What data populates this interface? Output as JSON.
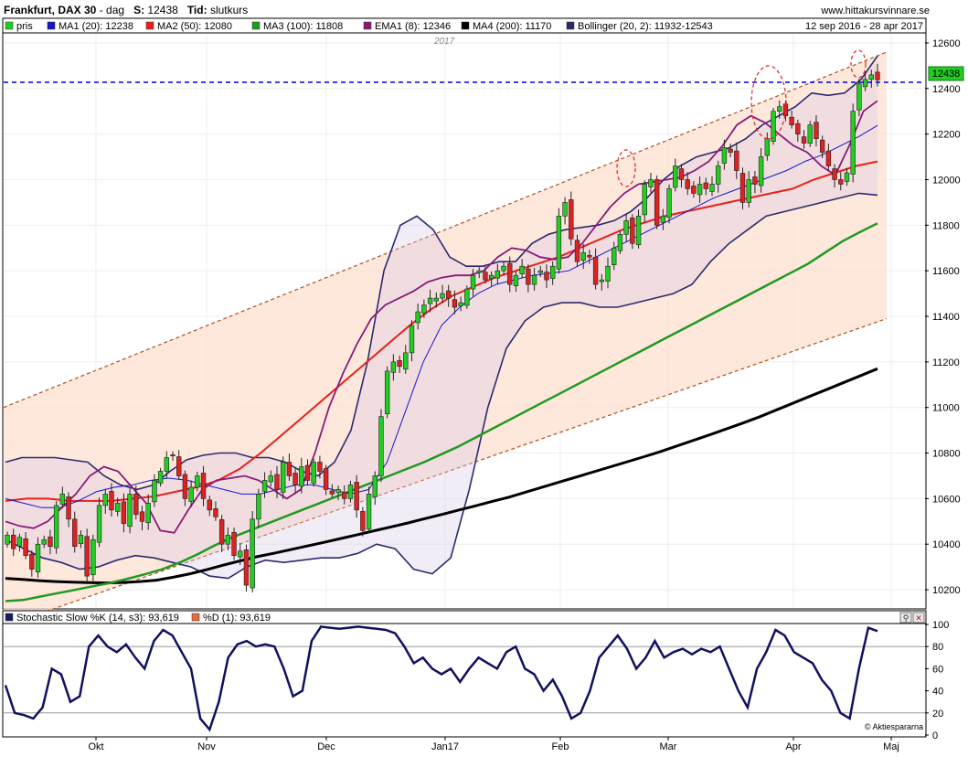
{
  "header": {
    "instrument": "Frankfurt, DAX 30",
    "sep": " - ",
    "period": "dag",
    "s_label": "S:",
    "s_value": "12438",
    "tid_label": "Tid:",
    "tid_value": "slutkurs",
    "site": "www.hittakursvinnare.se",
    "date_range": "12 sep 2016 - 28 apr 2017"
  },
  "legend": [
    {
      "label": "pris",
      "color": "#22cc22"
    },
    {
      "label": "MA1 (20): 12238",
      "color": "#1515cc"
    },
    {
      "label": "MA2 (50): 12080",
      "color": "#e8201a"
    },
    {
      "label": "MA3 (100): 11808",
      "color": "#229922"
    },
    {
      "label": "EMA1 (8): 12346",
      "color": "#8a1a7a"
    },
    {
      "label": "MA4 (200): 11170",
      "color": "#000000"
    },
    {
      "label": "Bollinger (20, 2): 11932-12543",
      "color": "#2b2a6e"
    }
  ],
  "stoch_legend": [
    {
      "label": "Stochastic Slow %K (14, s3): 93,619",
      "color": "#1a1a5e"
    },
    {
      "label": "%D (1): 93,619",
      "color": "#e86a3a"
    }
  ],
  "price_label": "12438",
  "year_label": "2017",
  "watermark": "© Aktiespararna",
  "colors": {
    "up": "#22cc22",
    "down": "#dd2222",
    "ma20": "#1515cc",
    "ma50": "#e8201a",
    "ma100": "#229922",
    "ema8": "#8a1a7a",
    "ma200": "#000000",
    "boll": "#2b2a6e",
    "channel": "#b05020",
    "channel_fill": "#fde0d0",
    "ref_line": "#0000dd",
    "stoch": "#101060"
  },
  "chart_data": [
    {
      "type": "candlestick",
      "title": "Frankfurt, DAX 30",
      "x_labels": [
        "Okt",
        "Nov",
        "Dec",
        "Jan17",
        "Feb",
        "Mar",
        "Apr",
        "Maj"
      ],
      "y_ticks": [
        10200,
        10400,
        10600,
        10800,
        11000,
        11200,
        11400,
        11600,
        11800,
        12000,
        12200,
        12400,
        12600
      ],
      "ylim": [
        10120,
        12640
      ],
      "last_price": 12438,
      "reference_line": 12380,
      "close_series": [
        10440,
        10380,
        10430,
        10350,
        10290,
        10400,
        10420,
        10390,
        10570,
        10620,
        10510,
        10390,
        10440,
        10260,
        10420,
        10570,
        10620,
        10550,
        10580,
        10490,
        10620,
        10530,
        10500,
        10580,
        10680,
        10720,
        10780,
        10790,
        10700,
        10600,
        10650,
        10700,
        10600,
        10550,
        10520,
        10400,
        10440,
        10350,
        10370,
        10220,
        10510,
        10620,
        10680,
        10700,
        10640,
        10760,
        10700,
        10660,
        10740,
        10680,
        10760,
        10720,
        10640,
        10620,
        10640,
        10600,
        10660,
        10550,
        10460,
        10620,
        10700,
        10960,
        11160,
        11200,
        11180,
        11240,
        11360,
        11420,
        11450,
        11480,
        11480,
        11500,
        11480,
        11440,
        11460,
        11520,
        11580,
        11600,
        11560,
        11580,
        11600,
        11620,
        11540,
        11580,
        11620,
        11540,
        11580,
        11600,
        11560,
        11620,
        11840,
        11900,
        11740,
        11640,
        11680,
        11660,
        11540,
        11560,
        11620,
        11700,
        11760,
        11820,
        11720,
        11840,
        11980,
        12000,
        11800,
        11840,
        11960,
        12060,
        12000,
        11960,
        11940,
        11980,
        11960,
        11980,
        12060,
        12140,
        12120,
        12040,
        11900,
        12000,
        11980,
        12100,
        12180,
        12300,
        12320,
        12280,
        12240,
        12200,
        12160,
        12240,
        12180,
        12120,
        12060,
        12000,
        11980,
        12030,
        12300,
        12420,
        12440,
        12460,
        12438
      ],
      "ma200": [
        10250,
        10245,
        10240,
        10236,
        10233,
        10231,
        10230,
        10232,
        10236,
        10242,
        10255,
        10270,
        10288,
        10308,
        10327,
        10345,
        10360,
        10376,
        10392,
        10408,
        10425,
        10442,
        10459,
        10476,
        10493,
        10512,
        10530,
        10549,
        10568,
        10587,
        10606,
        10628,
        10650,
        10672,
        10694,
        10716,
        10738,
        10760,
        10782,
        10805,
        10830,
        10855,
        10880,
        10906,
        10932,
        10960,
        10990,
        11020,
        11050,
        11080,
        11110,
        11140,
        11170
      ],
      "ma100": [
        10150,
        10155,
        10170,
        10185,
        10200,
        10215,
        10230,
        10248,
        10268,
        10290,
        10320,
        10355,
        10395,
        10430,
        10460,
        10490,
        10520,
        10550,
        10580,
        10610,
        10640,
        10670,
        10700,
        10730,
        10760,
        10795,
        10830,
        10870,
        10910,
        10950,
        10990,
        11030,
        11070,
        11110,
        11150,
        11190,
        11230,
        11270,
        11310,
        11350,
        11390,
        11430,
        11470,
        11510,
        11550,
        11590,
        11630,
        11680,
        11730,
        11770,
        11808
      ],
      "ma50": [
        10590,
        10600,
        10600,
        10590,
        10590,
        10590,
        10600,
        10610,
        10630,
        10650,
        10680,
        10730,
        10800,
        10880,
        10960,
        11040,
        11120,
        11200,
        11280,
        11360,
        11430,
        11490,
        11530,
        11570,
        11600,
        11630,
        11660,
        11700,
        11740,
        11780,
        11810,
        11840,
        11860,
        11880,
        11900,
        11920,
        11940,
        11960,
        12000,
        12030,
        12060,
        12080
      ],
      "ma20": [
        10600,
        10580,
        10560,
        10560,
        10590,
        10630,
        10650,
        10660,
        10680,
        10690,
        10680,
        10660,
        10640,
        10620,
        10620,
        10640,
        10660,
        10660,
        10640,
        10620,
        10640,
        10760,
        10980,
        11200,
        11360,
        11440,
        11500,
        11540,
        11560,
        11580,
        11590,
        11600,
        11640,
        11680,
        11720,
        11760,
        11800,
        11840,
        11880,
        11920,
        11950,
        11980,
        12010,
        12040,
        12080,
        12110,
        12150,
        12190,
        12238
      ],
      "ema8": [
        10500,
        10480,
        10470,
        10500,
        10560,
        10620,
        10700,
        10740,
        10720,
        10650,
        10580,
        10460,
        10450,
        10550,
        10640,
        10680,
        10690,
        10700,
        10680,
        10640,
        10600,
        10640,
        10800,
        11000,
        11150,
        11280,
        11390,
        11450,
        11480,
        11510,
        11550,
        11570,
        11580,
        11580,
        11600,
        11660,
        11700,
        11690,
        11660,
        11650,
        11660,
        11720,
        11800,
        11880,
        11940,
        11980,
        11990,
        12000,
        12010,
        12040,
        12080,
        12150,
        12240,
        12280,
        12250,
        12200,
        12150,
        12120,
        12060,
        12020,
        12150,
        12300,
        12346
      ],
      "bollinger_upper": [
        10760,
        10780,
        10780,
        10780,
        10770,
        10760,
        10700,
        10660,
        10640,
        10660,
        10720,
        10770,
        10790,
        10800,
        10800,
        10780,
        10780,
        10760,
        10720,
        10700,
        10760,
        10900,
        11200,
        11600,
        11800,
        11840,
        11780,
        11660,
        11620,
        11620,
        11640,
        11640,
        11720,
        11760,
        11780,
        11790,
        11800,
        11820,
        11860,
        11920,
        12000,
        12060,
        12100,
        12120,
        12140,
        12180,
        12240,
        12280,
        12320,
        12380,
        12370,
        12380,
        12440,
        12543
      ],
      "bollinger_lower": [
        10420,
        10380,
        10340,
        10320,
        10290,
        10300,
        10330,
        10350,
        10340,
        10320,
        10300,
        10260,
        10250,
        10300,
        10330,
        10320,
        10330,
        10340,
        10340,
        10360,
        10400,
        10380,
        10290,
        10270,
        10340,
        10640,
        11000,
        11260,
        11380,
        11440,
        11460,
        11460,
        11440,
        11440,
        11460,
        11480,
        11500,
        11540,
        11640,
        11720,
        11780,
        11840,
        11860,
        11880,
        11900,
        11920,
        11940,
        11932
      ],
      "channel": {
        "upper_start": 11000,
        "upper_end": 12560,
        "lower_start": 10040,
        "lower_end": 11390
      }
    },
    {
      "type": "line",
      "title": "Stochastic Slow %K (14, s3)",
      "y_ticks": [
        0,
        20,
        40,
        60,
        80,
        100
      ],
      "ylim": [
        0,
        100
      ],
      "reference_lines": [
        20,
        80
      ],
      "values": [
        45,
        20,
        18,
        15,
        25,
        60,
        55,
        30,
        35,
        80,
        90,
        80,
        75,
        82,
        70,
        60,
        85,
        95,
        90,
        75,
        60,
        15,
        5,
        30,
        70,
        82,
        85,
        80,
        82,
        80,
        60,
        35,
        40,
        85,
        98,
        97,
        96,
        97,
        98,
        97,
        96,
        95,
        92,
        80,
        65,
        70,
        60,
        55,
        60,
        48,
        60,
        70,
        65,
        60,
        75,
        80,
        60,
        55,
        40,
        50,
        35,
        15,
        20,
        40,
        70,
        80,
        90,
        78,
        60,
        70,
        85,
        70,
        75,
        78,
        73,
        78,
        75,
        80,
        60,
        40,
        25,
        60,
        75,
        95,
        90,
        75,
        70,
        65,
        50,
        40,
        20,
        15,
        60,
        97,
        94
      ]
    }
  ]
}
